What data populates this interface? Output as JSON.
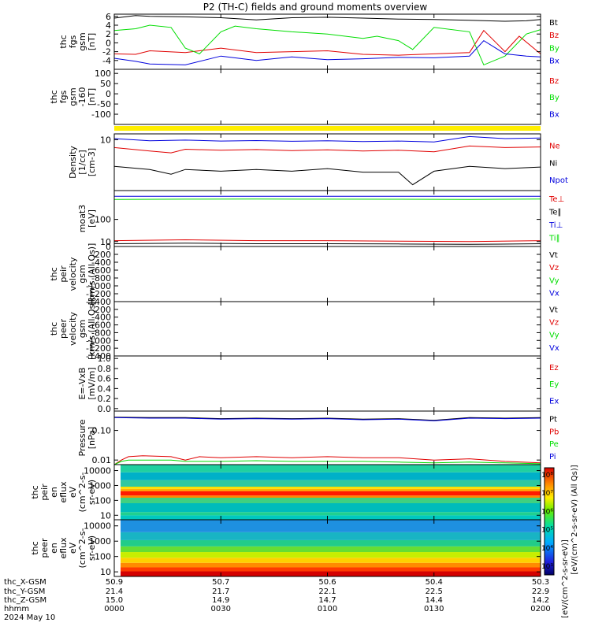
{
  "title": "P2 (TH-C) fields and ground moments overview",
  "colors": {
    "black": "#000000",
    "red": "#e00000",
    "green": "#00dd00",
    "blue": "#0000dd",
    "yellow": "#ffee00"
  },
  "chart_data": [
    {
      "type": "line",
      "panel": "fgs",
      "ylabel_lines": [
        "thc",
        "fgs",
        "gsm",
        "[nT]"
      ],
      "ylim": [
        -6,
        6.5
      ],
      "yticks": [
        "6",
        "4",
        "2",
        "0",
        "-2",
        "-4"
      ],
      "legend": [
        {
          "name": "Bt",
          "color": "black"
        },
        {
          "name": "Bz",
          "color": "red"
        },
        {
          "name": "By",
          "color": "green"
        },
        {
          "name": "Bx",
          "color": "blue"
        }
      ],
      "series": [
        {
          "name": "Bt",
          "color": "black",
          "x": [
            0,
            3,
            5,
            10,
            15,
            20,
            25,
            30,
            35,
            40,
            45,
            50,
            55,
            58,
            60
          ],
          "y": [
            5.6,
            6.2,
            6.0,
            5.9,
            5.7,
            5.2,
            5.7,
            5.8,
            5.6,
            5.4,
            5.3,
            5.1,
            4.9,
            5.0,
            5.3
          ]
        },
        {
          "name": "Bz",
          "color": "red",
          "x": [
            0,
            3,
            5,
            10,
            15,
            20,
            25,
            30,
            35,
            40,
            45,
            50,
            52,
            55,
            57,
            60
          ],
          "y": [
            -2.5,
            -2.6,
            -1.8,
            -2.2,
            -1.2,
            -2.2,
            -2.0,
            -1.8,
            -2.6,
            -2.8,
            -2.5,
            -2.2,
            2.8,
            -2.0,
            1.5,
            -2.5
          ]
        },
        {
          "name": "By",
          "color": "green",
          "x": [
            0,
            3,
            5,
            8,
            10,
            12,
            15,
            17,
            20,
            25,
            30,
            35,
            37,
            40,
            42,
            45,
            50,
            52,
            55,
            58,
            60
          ],
          "y": [
            2.8,
            3.2,
            4.0,
            3.5,
            -1.2,
            -2.5,
            2.5,
            3.8,
            3.2,
            2.5,
            2.0,
            1.0,
            1.5,
            0.5,
            -1.5,
            3.5,
            2.5,
            -5.0,
            -3.0,
            2.0,
            3.0
          ]
        },
        {
          "name": "Bx",
          "color": "blue",
          "x": [
            0,
            3,
            5,
            10,
            15,
            20,
            25,
            30,
            35,
            40,
            45,
            50,
            52,
            55,
            58,
            60
          ],
          "y": [
            -3.5,
            -4.2,
            -4.8,
            -5.0,
            -3.0,
            -4.0,
            -3.2,
            -3.8,
            -3.6,
            -3.3,
            -3.4,
            -3.0,
            0.5,
            -2.5,
            -3.0,
            -3.2
          ]
        }
      ]
    },
    {
      "type": "line",
      "panel": "fgs-dsl",
      "ylabel_lines": [
        "thc",
        "fgs",
        "gsm",
        "-160",
        "[nT]"
      ],
      "ylim": [
        -150,
        120
      ],
      "yticks": [
        "100",
        "50",
        "0",
        "-50",
        "-100"
      ],
      "legend": [
        {
          "name": "Bz",
          "color": "red"
        },
        {
          "name": "By",
          "color": "green"
        },
        {
          "name": "Bx",
          "color": "blue"
        }
      ],
      "series": []
    },
    {
      "type": "line",
      "panel": "density",
      "ylabel_lines": [
        "Density",
        "[1/cc]",
        "[cm-3]"
      ],
      "ylim": [
        1,
        13
      ],
      "yticks": [
        "10"
      ],
      "legend": [
        {
          "name": "Ne",
          "color": "red"
        },
        {
          "name": "Ni",
          "color": "black"
        },
        {
          "name": "Npot",
          "color": "blue"
        }
      ],
      "series": [
        {
          "name": "Npot",
          "color": "blue",
          "x": [
            0,
            5,
            10,
            15,
            20,
            25,
            30,
            35,
            40,
            45,
            50,
            55,
            60
          ],
          "y": [
            10.5,
            9.5,
            9.8,
            9.4,
            9.6,
            9.3,
            9.5,
            9.2,
            9.4,
            9.0,
            11.5,
            10.5,
            10.8
          ]
        },
        {
          "name": "Ne",
          "color": "red",
          "x": [
            0,
            5,
            8,
            10,
            15,
            20,
            25,
            30,
            35,
            40,
            45,
            50,
            55,
            60
          ],
          "y": [
            7.0,
            6.0,
            5.5,
            6.5,
            6.2,
            6.4,
            6.1,
            6.3,
            6.0,
            6.2,
            5.8,
            7.5,
            7.0,
            7.2
          ]
        },
        {
          "name": "Ni",
          "color": "black",
          "x": [
            0,
            5,
            8,
            10,
            15,
            20,
            25,
            30,
            35,
            40,
            42,
            45,
            50,
            55,
            60
          ],
          "y": [
            3.0,
            2.6,
            2.1,
            2.6,
            2.4,
            2.6,
            2.4,
            2.7,
            2.3,
            2.3,
            1.3,
            2.4,
            3.0,
            2.7,
            2.9
          ]
        }
      ]
    },
    {
      "type": "line",
      "panel": "temperature",
      "ylabel_lines": [
        "moat3",
        "[eV]"
      ],
      "ylim": [
        6,
        2000
      ],
      "yticks": [
        "100",
        "10"
      ],
      "legend": [
        {
          "name": "Te⊥",
          "color": "red"
        },
        {
          "name": "Te∥",
          "color": "black"
        },
        {
          "name": "Ti⊥",
          "color": "blue"
        },
        {
          "name": "Ti∥",
          "color": "green"
        }
      ],
      "series": [
        {
          "name": "Ti⊥",
          "color": "blue",
          "x": [
            0,
            60
          ],
          "y": [
            1100,
            1100
          ]
        },
        {
          "name": "Ti∥",
          "color": "green",
          "x": [
            0,
            10,
            20,
            30,
            40,
            50,
            60
          ],
          "y": [
            800,
            820,
            830,
            820,
            810,
            800,
            830
          ]
        },
        {
          "name": "Te⊥",
          "color": "red",
          "x": [
            0,
            10,
            20,
            30,
            40,
            50,
            60
          ],
          "y": [
            11,
            12,
            11,
            11,
            10.5,
            10,
            11
          ]
        },
        {
          "name": "Te∥",
          "color": "black",
          "x": [
            0,
            10,
            20,
            30,
            40,
            50,
            60
          ],
          "y": [
            8,
            8.5,
            8,
            8,
            7.8,
            7.5,
            8
          ]
        }
      ]
    },
    {
      "type": "line",
      "panel": "peir-velocity",
      "ylabel_lines": [
        "thc",
        "peir",
        "velocity",
        "gsm",
        "[km/s (All Qs)]"
      ],
      "ylim": [
        -1400,
        0
      ],
      "yticks": [
        "0",
        "-200",
        "-400",
        "-600",
        "-800",
        "-1000",
        "-1200",
        "-1400"
      ],
      "legend": [
        {
          "name": "Vt",
          "color": "black"
        },
        {
          "name": "Vz",
          "color": "red"
        },
        {
          "name": "Vy",
          "color": "green"
        },
        {
          "name": "Vx",
          "color": "blue"
        }
      ],
      "series": []
    },
    {
      "type": "line",
      "panel": "peer-velocity",
      "ylabel_lines": [
        "thc",
        "peer",
        "velocity",
        "gsm",
        "[km/s (All Qs)]"
      ],
      "ylim": [
        -1400,
        0
      ],
      "yticks": [
        "-200",
        "-400",
        "-600",
        "-800",
        "-1000",
        "-1200",
        "-1400"
      ],
      "legend": [
        {
          "name": "Vt",
          "color": "black"
        },
        {
          "name": "Vz",
          "color": "red"
        },
        {
          "name": "Vy",
          "color": "green"
        },
        {
          "name": "Vx",
          "color": "blue"
        }
      ],
      "series": []
    },
    {
      "type": "line",
      "panel": "efield",
      "ylabel_lines": [
        "E=-VxB",
        "[mV/m]"
      ],
      "ylim": [
        -0.05,
        1.05
      ],
      "yticks": [
        "1.0",
        "0.8",
        "0.6",
        "0.4",
        "0.2",
        "0.0"
      ],
      "legend": [
        {
          "name": "Ez",
          "color": "red"
        },
        {
          "name": "Ey",
          "color": "green"
        },
        {
          "name": "Ex",
          "color": "blue"
        }
      ],
      "series": []
    },
    {
      "type": "line",
      "panel": "pressure",
      "ylabel_lines": [
        "Pressure",
        "[nPa]"
      ],
      "ylim": [
        0.007,
        0.45
      ],
      "yticks": [
        "0.10",
        "0.01"
      ],
      "legend": [
        {
          "name": "Pt",
          "color": "black"
        },
        {
          "name": "Pb",
          "color": "red"
        },
        {
          "name": "Pe",
          "color": "green"
        },
        {
          "name": "Pi",
          "color": "blue"
        }
      ],
      "series": [
        {
          "name": "Pt",
          "color": "black",
          "x": [
            0,
            5,
            10,
            15,
            20,
            25,
            30,
            35,
            40,
            45,
            50,
            55,
            60
          ],
          "y": [
            0.28,
            0.27,
            0.27,
            0.25,
            0.26,
            0.25,
            0.26,
            0.24,
            0.25,
            0.22,
            0.27,
            0.26,
            0.27
          ]
        },
        {
          "name": "Pi",
          "color": "blue",
          "x": [
            0,
            5,
            10,
            15,
            20,
            25,
            30,
            35,
            40,
            45,
            50,
            55,
            60
          ],
          "y": [
            0.27,
            0.26,
            0.26,
            0.24,
            0.25,
            0.24,
            0.25,
            0.23,
            0.24,
            0.21,
            0.26,
            0.25,
            0.26
          ]
        },
        {
          "name": "Pb",
          "color": "red",
          "x": [
            0,
            1,
            2,
            4,
            8,
            10,
            12,
            15,
            20,
            25,
            30,
            35,
            40,
            45,
            50,
            55,
            60
          ],
          "y": [
            0.007,
            0.01,
            0.013,
            0.014,
            0.013,
            0.01,
            0.013,
            0.012,
            0.013,
            0.012,
            0.013,
            0.012,
            0.012,
            0.01,
            0.011,
            0.009,
            0.008
          ]
        },
        {
          "name": "Pe",
          "color": "green",
          "x": [
            0,
            1,
            2,
            4,
            8,
            10,
            12,
            15,
            20,
            25,
            30,
            35,
            40,
            45,
            50,
            55,
            60
          ],
          "y": [
            0.007,
            0.009,
            0.01,
            0.01,
            0.01,
            0.009,
            0.009,
            0.009,
            0.0095,
            0.009,
            0.009,
            0.009,
            0.0085,
            0.008,
            0.0085,
            0.008,
            0.0075
          ]
        }
      ]
    },
    {
      "type": "heatmap",
      "panel": "peir-eflux",
      "ylabel_lines": [
        "thc",
        "peir",
        "en",
        "eflux",
        "eV",
        "(cm^2-s-",
        "sr-eV)"
      ],
      "ylim": [
        5,
        25000
      ],
      "yticks": [
        "10000",
        "1000",
        "100",
        "10"
      ],
      "colorscale": "rainbow"
    },
    {
      "type": "heatmap",
      "panel": "peer-eflux",
      "ylabel_lines": [
        "thc",
        "peer",
        "en",
        "eflux",
        "eV",
        "(cm^2-s-",
        "sr-eV)"
      ],
      "ylim": [
        5,
        25000
      ],
      "yticks": [
        "10000",
        "1000",
        "100",
        "10"
      ],
      "colorscale": "rainbow"
    }
  ],
  "colorbar": {
    "ticks": [
      "10⁸",
      "10⁷",
      "10⁶",
      "10⁵",
      "10⁴",
      "10³"
    ],
    "label": "[eV/(cm^2-s-sr-eV) (All Qs)]",
    "label2": "[eV/(cm^2-s-sr-eV)]"
  },
  "x_axis": {
    "row_labels": [
      "thc_X-GSM",
      "thc_Y-GSM",
      "thc_Z-GSM",
      "hhmm",
      "2024 May 10"
    ],
    "ticks": [
      {
        "t": 0,
        "x_gsm": "50.9",
        "y_gsm": "21.4",
        "z_gsm": "15.0",
        "hhmm": "0000"
      },
      {
        "t": 15,
        "x_gsm": "50.7",
        "y_gsm": "21.7",
        "z_gsm": "14.9",
        "hhmm": "0030"
      },
      {
        "t": 30,
        "x_gsm": "50.6",
        "y_gsm": "22.1",
        "z_gsm": "14.7",
        "hhmm": "0100"
      },
      {
        "t": 45,
        "x_gsm": "50.4",
        "y_gsm": "22.5",
        "z_gsm": "14.4",
        "hhmm": "0130"
      },
      {
        "t": 60,
        "x_gsm": "50.3",
        "y_gsm": "22.9",
        "z_gsm": "14.2",
        "hhmm": "0200"
      }
    ]
  }
}
